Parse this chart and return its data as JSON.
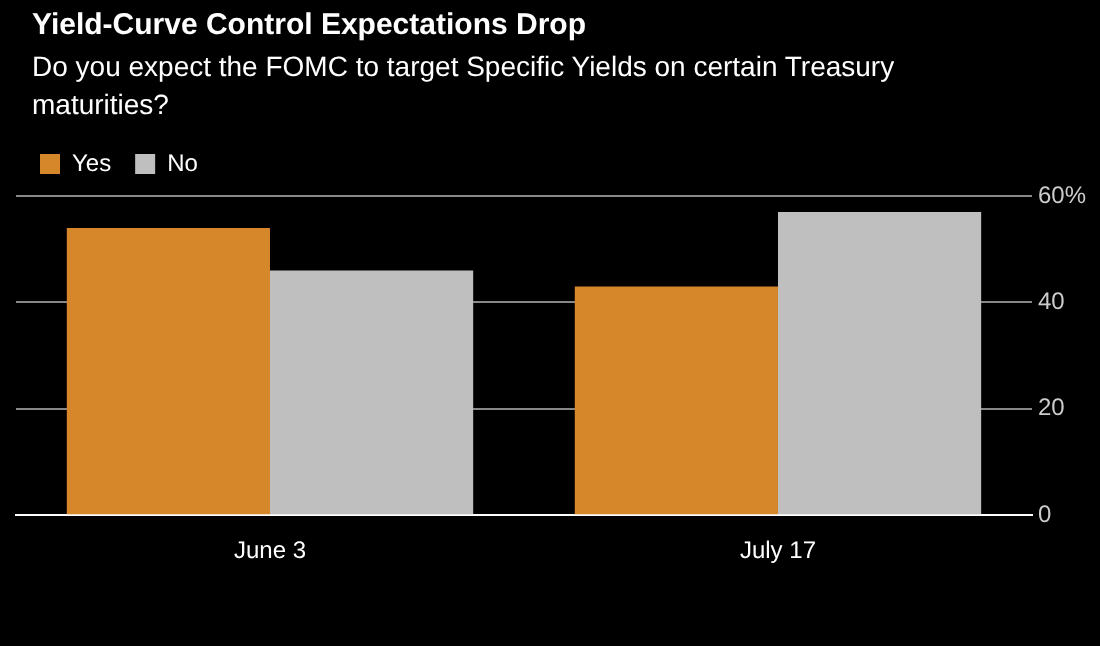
{
  "chart_data": {
    "type": "bar",
    "title": "Yield-Curve Control Expectations Drop",
    "subtitle": "Do you expect the FOMC to target Specific Yields on certain Treasury maturities?",
    "categories": [
      "June 3",
      "July 17"
    ],
    "series": [
      {
        "name": "Yes",
        "color": "#d6872a",
        "values": [
          54,
          43
        ]
      },
      {
        "name": "No",
        "color": "#bfbfbf",
        "values": [
          46,
          57
        ]
      }
    ],
    "ylim": [
      0,
      60
    ],
    "yticks": [
      0,
      20,
      40,
      {
        "value": 60,
        "label": "60%"
      }
    ],
    "grid": "y",
    "legend": "top left"
  }
}
